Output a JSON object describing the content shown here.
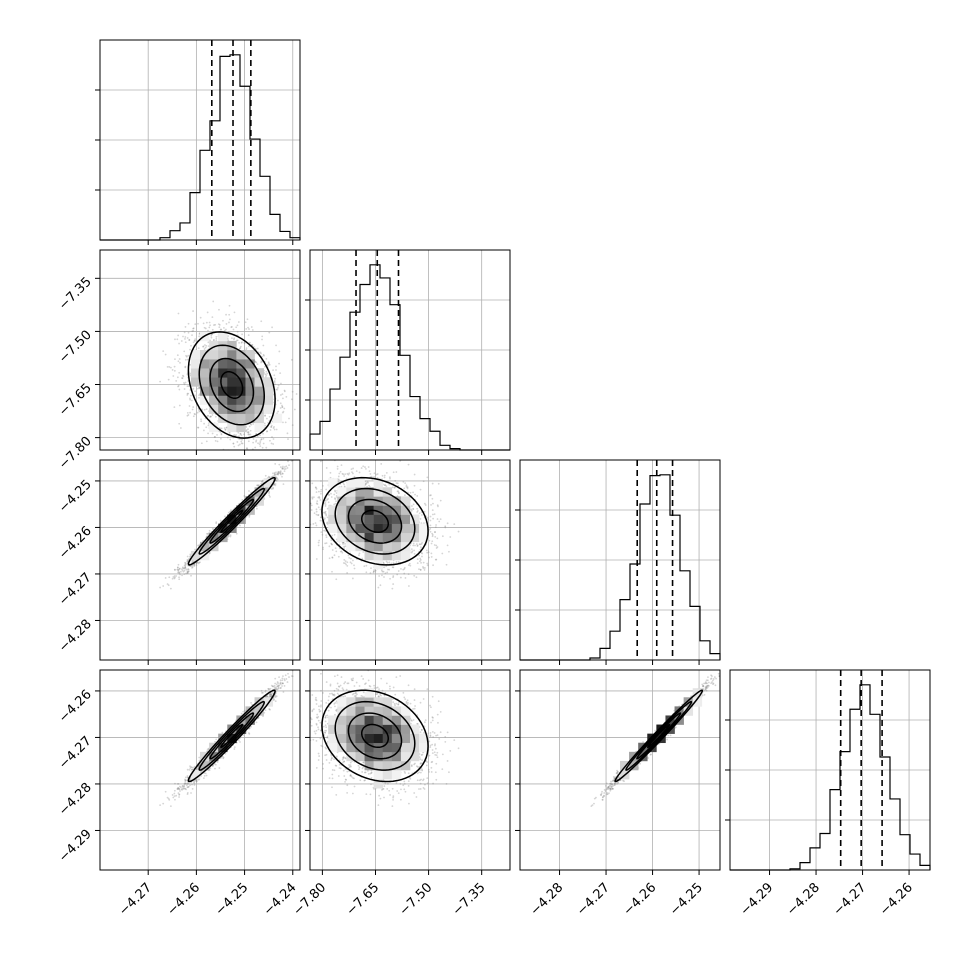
{
  "chart_data": {
    "type": "corner",
    "parameters": [
      {
        "axis_range": [
          -4.28,
          -4.2385
        ],
        "mean": -4.2525,
        "sd": 0.0045,
        "quantiles": [
          -4.2568,
          -4.2524,
          -4.2487
        ],
        "ticks": [
          -4.27,
          -4.26,
          -4.25,
          -4.24
        ],
        "tick_labels": [
          "−4.27",
          "−4.26",
          "−4.25",
          "−4.24"
        ]
      },
      {
        "axis_range": [
          -7.835,
          -7.27
        ],
        "mean": -7.65,
        "sd": 0.075,
        "quantiles": [
          -7.705,
          -7.645,
          -7.585
        ],
        "ticks": [
          -7.8,
          -7.65,
          -7.5,
          -7.35
        ],
        "tick_labels": [
          "−7.80",
          "−7.65",
          "−7.50",
          "−7.35"
        ]
      },
      {
        "axis_range": [
          -4.2885,
          -4.2455
        ],
        "mean": -4.2585,
        "sd": 0.0047,
        "quantiles": [
          -4.2633,
          -4.2591,
          -4.2557
        ],
        "ticks": [
          -4.28,
          -4.27,
          -4.26,
          -4.25
        ],
        "tick_labels": [
          "−4.28",
          "−4.27",
          "−4.26",
          "−4.25"
        ]
      },
      {
        "axis_range": [
          -4.2985,
          -4.2555
        ],
        "mean": -4.2695,
        "sd": 0.0049,
        "quantiles": [
          -4.2747,
          -4.2703,
          -4.2658
        ],
        "ticks": [
          -4.29,
          -4.28,
          -4.27,
          -4.26
        ],
        "tick_labels": [
          "−4.29",
          "−4.28",
          "−4.27",
          "−4.26"
        ]
      }
    ],
    "correlations": [
      [
        1,
        -0.3,
        0.98,
        0.98
      ],
      [
        -0.3,
        1,
        -0.25,
        -0.25
      ],
      [
        0.98,
        -0.25,
        1,
        0.99
      ],
      [
        0.98,
        -0.25,
        0.99,
        1
      ]
    ],
    "histogram_bins": 20,
    "contour_levels": 4,
    "grid": true
  }
}
